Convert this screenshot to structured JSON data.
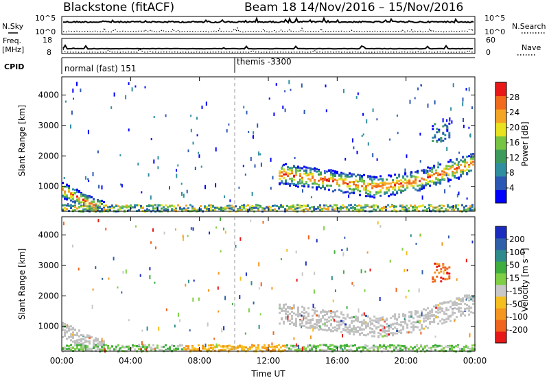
{
  "header": {
    "station": "Blackstone (fitACF)",
    "beam": "Beam 18",
    "date_range": "14/Nov/2016 – 15/Nov/2016"
  },
  "strip": {
    "nsky_label": "N.Sky",
    "nsearch_label": "N.Search",
    "freq_label": "Freq.",
    "freq_unit": "[MHz]",
    "nave_label": "Nave",
    "cpid_label": "CPID",
    "nsky_ticks": [
      "10^5",
      "10^0"
    ],
    "nsearch_ticks": [
      "10^5",
      "10^0"
    ],
    "freq_ticks": [
      "18",
      "8"
    ],
    "nave_ticks": [
      "60",
      "0"
    ],
    "cpid_segments": [
      {
        "label": "normal (fast) 151",
        "start_hour": 0
      },
      {
        "label": "themis -3300",
        "start_hour": 10
      }
    ]
  },
  "x_axis": {
    "title": "Time UT",
    "tick_labels": [
      "00:00",
      "04:00",
      "08:00",
      "12:00",
      "16:00",
      "20:00",
      "00:00"
    ],
    "tick_hours": [
      0,
      4,
      8,
      12,
      16,
      20,
      24
    ],
    "range_hours": [
      0,
      24
    ]
  },
  "colors": {
    "power_scale": [
      "#0000ff",
      "#2b58b4",
      "#2f8fa0",
      "#3c9a5c",
      "#76c442",
      "#e9e21e",
      "#f5a524",
      "#f26b1c",
      "#e81818"
    ],
    "velocity_scale": [
      "#1a2cc0",
      "#2f5fa8",
      "#2f8c8c",
      "#3fae3f",
      "#7fcf45",
      "#c8c8c8",
      "#f5c01e",
      "#f5961e",
      "#f0641e",
      "#e81818"
    ],
    "ground_scatter": "#c0c0c0"
  },
  "chart_data": [
    {
      "type": "heatmap",
      "name": "power",
      "title": "",
      "xlabel": "Time UT",
      "ylabel": "Slant Range [km]",
      "xlim": [
        0,
        24
      ],
      "ylim": [
        180,
        4600
      ],
      "y_tick_labels": [
        "1000",
        "2000",
        "3000",
        "4000"
      ],
      "y_tick_values": [
        1000,
        2000,
        3000,
        4000
      ],
      "colorbar_label": "Power [dB]",
      "colorbar_ticks": [
        "4",
        "8",
        "12",
        "16",
        "20",
        "24",
        "28"
      ],
      "colorbar_range": [
        0,
        32
      ],
      "features": [
        {
          "kind": "echo_band",
          "hours": [
            12.6,
            23.9
          ],
          "center_km": [
            1450,
            1300,
            1150,
            1000,
            1150,
            1450,
            1800
          ],
          "halfwidth_km": 350
        },
        {
          "kind": "early_band",
          "hours": [
            0,
            2.4
          ],
          "center_km": [
            900,
            700,
            450,
            300
          ],
          "halfwidth_km": 250
        },
        {
          "kind": "near_range_band",
          "hours": [
            0,
            24
          ],
          "center_km": 300,
          "halfwidth_km": 120
        },
        {
          "kind": "patch",
          "hours": [
            21.5,
            22.5
          ],
          "center_km": 2800,
          "halfwidth_km": 300
        }
      ]
    },
    {
      "type": "heatmap",
      "name": "velocity",
      "title": "",
      "xlabel": "Time UT",
      "ylabel": "Slant Range [km]",
      "xlim": [
        0,
        24
      ],
      "ylim": [
        180,
        4600
      ],
      "y_tick_labels": [
        "1000",
        "2000",
        "3000",
        "4000"
      ],
      "y_tick_values": [
        1000,
        2000,
        3000,
        4000
      ],
      "colorbar_label": "Velocity [m s⁻¹]",
      "colorbar_ticks": [
        "200",
        "100",
        "50",
        "15",
        "-15",
        "-50",
        "-100",
        "-200"
      ],
      "colorbar_range": [
        -250,
        250
      ],
      "features": [
        {
          "kind": "ground_scatter_band",
          "hours": [
            12.6,
            23.9
          ],
          "center_km": [
            1450,
            1300,
            1150,
            1000,
            1150,
            1450,
            1800
          ],
          "halfwidth_km": 350
        },
        {
          "kind": "ground_scatter_early",
          "hours": [
            0,
            2.4
          ],
          "center_km": [
            900,
            700,
            450,
            300
          ],
          "halfwidth_km": 250
        },
        {
          "kind": "near_range_band",
          "hours": [
            0,
            24
          ],
          "center_km": 300,
          "halfwidth_km": 120
        },
        {
          "kind": "patch",
          "hours": [
            21.5,
            22.5
          ],
          "center_km": 2800,
          "halfwidth_km": 300
        }
      ]
    }
  ]
}
